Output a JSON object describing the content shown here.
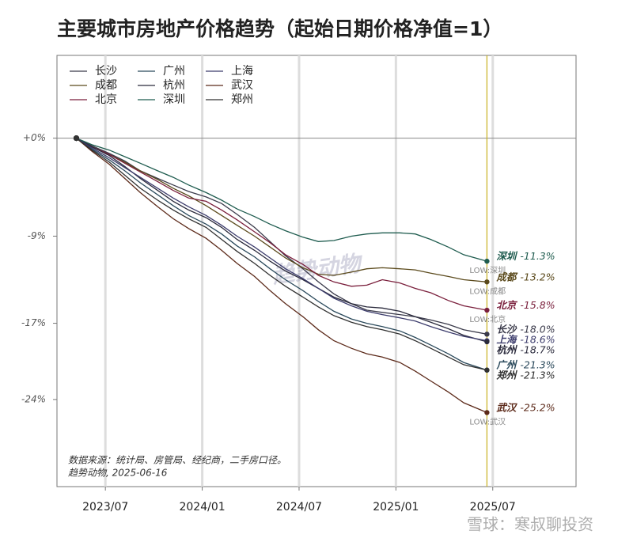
{
  "chart_data": {
    "type": "line",
    "title": "主要城市房地产价格趋势（起始日期价格净值=1）",
    "x": [
      2023.35,
      2023.43,
      2023.52,
      2023.6,
      2023.68,
      2023.77,
      2023.85,
      2023.93,
      2024.02,
      2024.1,
      2024.18,
      2024.27,
      2024.35,
      2024.43,
      2024.52,
      2024.6,
      2024.68,
      2024.77,
      2024.85,
      2024.93,
      2025.02,
      2025.1,
      2025.18,
      2025.27,
      2025.35,
      2025.47
    ],
    "xlim": [
      2023.25,
      2025.93
    ],
    "xticks": [
      {
        "value": 2023.5,
        "label": "2023/07"
      },
      {
        "value": 2024.0,
        "label": "2024/01"
      },
      {
        "value": 2024.5,
        "label": "2024/07"
      },
      {
        "value": 2025.0,
        "label": "2025/01"
      },
      {
        "value": 2025.5,
        "label": "2025/07"
      }
    ],
    "ylim": [
      -32,
      7.6
    ],
    "yticks": [
      {
        "value": 0,
        "label": "+0%"
      },
      {
        "value": -9,
        "label": "-9%"
      },
      {
        "value": -17,
        "label": "-17%"
      },
      {
        "value": -24,
        "label": "-24%"
      }
    ],
    "grid": "x",
    "series": [
      {
        "name": "长沙",
        "color": "#3b3b4b",
        "values": [
          0,
          -0.7,
          -1.4,
          -2.1,
          -3,
          -3.7,
          -4.3,
          -4.9,
          -5.4,
          -6.0,
          -7.0,
          -8.2,
          -9.5,
          -10.8,
          -12.0,
          -13.2,
          -14.3,
          -15.2,
          -15.8,
          -16.0,
          -16.2,
          -16.4,
          -16.7,
          -17.1,
          -17.6,
          -18.0
        ],
        "value_labels": [
          null,
          null,
          null,
          null,
          null,
          null,
          null,
          null,
          null,
          null,
          null,
          null,
          null,
          null,
          null,
          null,
          null,
          null,
          null,
          null,
          null,
          null,
          null,
          null,
          null,
          "-18.0%"
        ]
      },
      {
        "name": "成都",
        "color": "#5b4a1c",
        "values": [
          0,
          -0.8,
          -1.5,
          -2.2,
          -3,
          -3.8,
          -4.6,
          -5.3,
          -6.2,
          -7.1,
          -8,
          -9,
          -10,
          -11,
          -11.9,
          -12.5,
          -12.6,
          -12.3,
          -12.0,
          -11.9,
          -12.0,
          -12.1,
          -12.4,
          -12.7,
          -13.0,
          -13.2
        ],
        "value_labels": [
          null,
          null,
          null,
          null,
          null,
          null,
          null,
          null,
          null,
          null,
          null,
          null,
          null,
          null,
          null,
          null,
          null,
          null,
          null,
          null,
          null,
          null,
          null,
          null,
          null,
          "-13.2%"
        ],
        "low_label": "LOW:成都"
      },
      {
        "name": "北京",
        "color": "#7a1f3c",
        "values": [
          0,
          -0.8,
          -1.5,
          -2.3,
          -3.1,
          -4,
          -4.8,
          -5.5,
          -5.8,
          -6.6,
          -7.5,
          -8.6,
          -9.6,
          -10.7,
          -11.6,
          -12.6,
          -13.2,
          -13.6,
          -13.5,
          -13.0,
          -13.3,
          -13.8,
          -14.2,
          -14.9,
          -15.4,
          -15.8
        ],
        "value_labels": [
          null,
          null,
          null,
          null,
          null,
          null,
          null,
          null,
          null,
          null,
          null,
          null,
          null,
          null,
          null,
          null,
          null,
          null,
          null,
          null,
          null,
          null,
          null,
          null,
          null,
          "-15.8%"
        ],
        "low_label": "LOW:北京"
      },
      {
        "name": "广州",
        "color": "#2b4a5c",
        "values": [
          0,
          -1,
          -2,
          -3,
          -4.1,
          -5.2,
          -6.2,
          -7.1,
          -7.9,
          -8.8,
          -9.9,
          -10.9,
          -12,
          -13,
          -14,
          -15,
          -15.9,
          -16.6,
          -17,
          -17.3,
          -17.7,
          -18.3,
          -19.0,
          -19.8,
          -20.6,
          -21.3
        ],
        "value_labels": [
          null,
          null,
          null,
          null,
          null,
          null,
          null,
          null,
          null,
          null,
          null,
          null,
          null,
          null,
          null,
          null,
          null,
          null,
          null,
          null,
          null,
          null,
          null,
          null,
          null,
          "-21.3%"
        ]
      },
      {
        "name": "杭州",
        "color": "#2a2a3c",
        "values": [
          0,
          -0.8,
          -1.6,
          -2.6,
          -3.7,
          -4.8,
          -5.8,
          -6.6,
          -7.3,
          -8.2,
          -9.3,
          -10.3,
          -11.3,
          -12.2,
          -13.0,
          -13.8,
          -14.6,
          -15.2,
          -15.5,
          -15.6,
          -15.9,
          -16.4,
          -16.9,
          -17.5,
          -18.1,
          -18.7
        ],
        "value_labels": [
          null,
          null,
          null,
          null,
          null,
          null,
          null,
          null,
          null,
          null,
          null,
          null,
          null,
          null,
          null,
          null,
          null,
          null,
          null,
          null,
          null,
          null,
          null,
          null,
          null,
          "-18.7%"
        ]
      },
      {
        "name": "深圳",
        "color": "#1f5c4f",
        "values": [
          0,
          -0.6,
          -1.1,
          -1.7,
          -2.3,
          -3,
          -3.6,
          -4.3,
          -5,
          -5.7,
          -6.5,
          -7.2,
          -7.9,
          -8.5,
          -9.1,
          -9.5,
          -9.4,
          -9.0,
          -8.8,
          -8.7,
          -8.7,
          -8.8,
          -9.3,
          -10,
          -10.7,
          -11.3
        ],
        "value_labels": [
          null,
          null,
          null,
          null,
          null,
          null,
          null,
          null,
          null,
          null,
          null,
          null,
          null,
          null,
          null,
          null,
          null,
          null,
          null,
          null,
          null,
          null,
          null,
          null,
          null,
          "-11.3%"
        ],
        "low_label": "LOW:深圳"
      },
      {
        "name": "上海",
        "color": "#3c3c6c",
        "values": [
          0,
          -0.9,
          -1.8,
          -2.7,
          -3.6,
          -4.6,
          -5.5,
          -6.3,
          -7.1,
          -8.0,
          -9.0,
          -10.0,
          -11.0,
          -12.0,
          -12.9,
          -13.8,
          -14.7,
          -15.4,
          -15.9,
          -16.2,
          -16.5,
          -16.8,
          -17.3,
          -17.8,
          -18.2,
          -18.6
        ],
        "value_labels": [
          null,
          null,
          null,
          null,
          null,
          null,
          null,
          null,
          null,
          null,
          null,
          null,
          null,
          null,
          null,
          null,
          null,
          null,
          null,
          null,
          null,
          null,
          null,
          null,
          null,
          "-18.6%"
        ]
      },
      {
        "name": "武汉",
        "color": "#5c2a1a",
        "values": [
          0,
          -1.2,
          -2.4,
          -3.7,
          -5,
          -6.3,
          -7.4,
          -8.3,
          -9.2,
          -10.3,
          -11.5,
          -12.7,
          -14,
          -15.2,
          -16.4,
          -17.6,
          -18.6,
          -19.3,
          -19.8,
          -20.1,
          -20.6,
          -21.4,
          -22.3,
          -23.3,
          -24.3,
          -25.2
        ],
        "value_labels": [
          null,
          null,
          null,
          null,
          null,
          null,
          null,
          null,
          null,
          null,
          null,
          null,
          null,
          null,
          null,
          null,
          null,
          null,
          null,
          null,
          null,
          null,
          null,
          null,
          null,
          "-25.2%"
        ],
        "low_label": "LOW:武汉"
      },
      {
        "name": "郑州",
        "color": "#303030",
        "values": [
          0,
          -1.1,
          -2.2,
          -3.4,
          -4.6,
          -5.7,
          -6.6,
          -7.4,
          -8.2,
          -9.3,
          -10.4,
          -11.5,
          -12.6,
          -13.6,
          -14.6,
          -15.5,
          -16.3,
          -16.9,
          -17.3,
          -17.6,
          -18.0,
          -18.6,
          -19.3,
          -20.1,
          -20.8,
          -21.3
        ],
        "value_labels": [
          null,
          null,
          null,
          null,
          null,
          null,
          null,
          null,
          null,
          null,
          null,
          null,
          null,
          null,
          null,
          null,
          null,
          null,
          null,
          null,
          null,
          null,
          null,
          null,
          null,
          "-21.3%"
        ]
      }
    ],
    "source": [
      "数据来源：统计局、房管局、经纪商，二手房口径。",
      "趋势动物, 2025-06-16"
    ],
    "watermarks": [
      "趋势动物",
      "雪球：寒叔聊投资"
    ]
  }
}
